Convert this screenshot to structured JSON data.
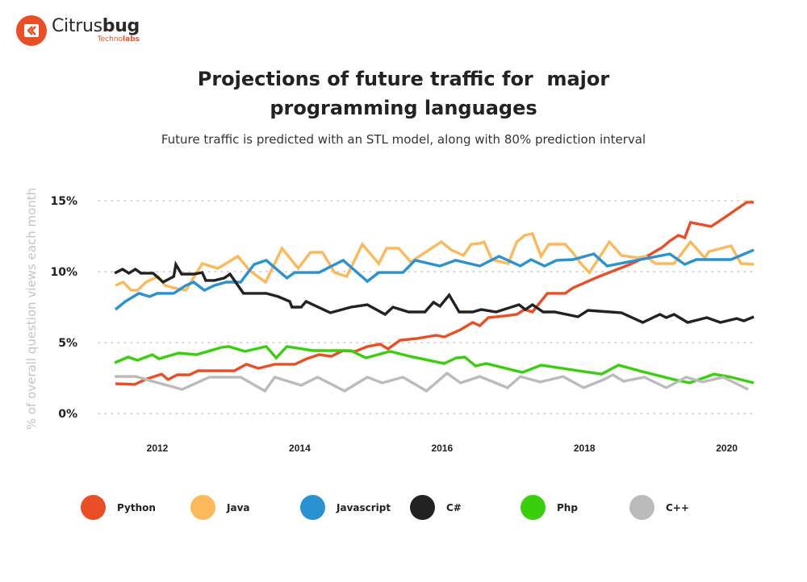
{
  "brand": {
    "name_regular": "Citrus",
    "name_bold": "bug",
    "sub_regular": "Techno",
    "sub_bold": "labs",
    "logo_icon": "chevron-left-double-icon",
    "color": "#ea4e27"
  },
  "title_line1": "Projections of future traffic for  major",
  "title_line2": "programming languages",
  "subtitle": "Future traffic is predicted with an STL model, along with 80% prediction interval",
  "chart_data": {
    "type": "line",
    "title": "Projections of future traffic for major programming languages",
    "subtitle": "Future traffic is predicted with an STL model, along with 80% prediction interval",
    "xlabel": "",
    "ylabel": "% of overall question views each month",
    "xlim": [
      2011.3,
      2020.5
    ],
    "ylim": [
      0,
      15
    ],
    "x_ticks": [
      2012,
      2014,
      2016,
      2018,
      2020
    ],
    "x_tick_labels": [
      "2012",
      "2014",
      "2016",
      "2018",
      "2020"
    ],
    "y_ticks": [
      0,
      5,
      10,
      15
    ],
    "y_tick_labels": [
      "0%",
      "5%",
      "10%",
      "15%"
    ],
    "grid": "horizontal dotted",
    "legend_position": "bottom",
    "series": [
      {
        "name": "Python",
        "color": "#ea4e27",
        "points": [
          [
            2011.41,
            2.1
          ],
          [
            2011.68,
            2.05
          ],
          [
            2011.85,
            2.44
          ],
          [
            2012.06,
            2.78
          ],
          [
            2012.15,
            2.39
          ],
          [
            2012.28,
            2.73
          ],
          [
            2012.45,
            2.73
          ],
          [
            2012.57,
            3.01
          ],
          [
            2012.74,
            3.01
          ],
          [
            2013.08,
            3.01
          ],
          [
            2013.25,
            3.47
          ],
          [
            2013.42,
            3.18
          ],
          [
            2013.65,
            3.47
          ],
          [
            2013.93,
            3.47
          ],
          [
            2014.1,
            3.86
          ],
          [
            2014.27,
            4.15
          ],
          [
            2014.44,
            4.03
          ],
          [
            2014.61,
            4.43
          ],
          [
            2014.78,
            4.38
          ],
          [
            2014.95,
            4.72
          ],
          [
            2015.13,
            4.89
          ],
          [
            2015.24,
            4.55
          ],
          [
            2015.41,
            5.17
          ],
          [
            2015.64,
            5.28
          ],
          [
            2015.92,
            5.51
          ],
          [
            2016.03,
            5.4
          ],
          [
            2016.26,
            5.91
          ],
          [
            2016.43,
            6.42
          ],
          [
            2016.53,
            6.19
          ],
          [
            2016.65,
            6.76
          ],
          [
            2016.88,
            6.88
          ],
          [
            2017.05,
            6.99
          ],
          [
            2017.16,
            7.33
          ],
          [
            2017.27,
            7.16
          ],
          [
            2017.48,
            8.47
          ],
          [
            2017.73,
            8.47
          ],
          [
            2017.84,
            8.86
          ],
          [
            2018.18,
            9.6
          ],
          [
            2018.41,
            10.06
          ],
          [
            2018.64,
            10.51
          ],
          [
            2018.86,
            11.02
          ],
          [
            2019.09,
            11.7
          ],
          [
            2019.2,
            12.16
          ],
          [
            2019.32,
            12.56
          ],
          [
            2019.41,
            12.39
          ],
          [
            2019.49,
            13.47
          ],
          [
            2019.78,
            13.18
          ],
          [
            2020.0,
            13.92
          ],
          [
            2020.28,
            14.89
          ],
          [
            2020.38,
            14.89
          ]
        ]
      },
      {
        "name": "Java",
        "color": "#fbb95b",
        "points": [
          [
            2011.41,
            9.03
          ],
          [
            2011.52,
            9.26
          ],
          [
            2011.63,
            8.69
          ],
          [
            2011.72,
            8.69
          ],
          [
            2011.84,
            9.26
          ],
          [
            2012.01,
            9.66
          ],
          [
            2012.11,
            9.03
          ],
          [
            2012.23,
            8.86
          ],
          [
            2012.4,
            8.69
          ],
          [
            2012.63,
            10.57
          ],
          [
            2012.85,
            10.23
          ],
          [
            2013.13,
            11.08
          ],
          [
            2013.3,
            10.06
          ],
          [
            2013.52,
            9.26
          ],
          [
            2013.75,
            11.65
          ],
          [
            2013.98,
            10.23
          ],
          [
            2014.15,
            11.36
          ],
          [
            2014.32,
            11.36
          ],
          [
            2014.49,
            9.94
          ],
          [
            2014.66,
            9.66
          ],
          [
            2014.88,
            11.93
          ],
          [
            2015.11,
            10.57
          ],
          [
            2015.22,
            11.65
          ],
          [
            2015.39,
            11.65
          ],
          [
            2015.56,
            10.68
          ],
          [
            2015.99,
            12.1
          ],
          [
            2016.13,
            11.53
          ],
          [
            2016.3,
            11.14
          ],
          [
            2016.41,
            11.93
          ],
          [
            2016.53,
            11.99
          ],
          [
            2016.59,
            12.1
          ],
          [
            2016.7,
            10.85
          ],
          [
            2016.93,
            10.57
          ],
          [
            2017.05,
            12.1
          ],
          [
            2017.16,
            12.56
          ],
          [
            2017.27,
            12.67
          ],
          [
            2017.39,
            11.08
          ],
          [
            2017.5,
            11.93
          ],
          [
            2017.73,
            11.93
          ],
          [
            2017.84,
            11.31
          ],
          [
            2017.95,
            10.57
          ],
          [
            2018.07,
            9.94
          ],
          [
            2018.35,
            12.1
          ],
          [
            2018.52,
            11.14
          ],
          [
            2018.75,
            10.97
          ],
          [
            2018.86,
            11.08
          ],
          [
            2019.0,
            10.57
          ],
          [
            2019.26,
            10.57
          ],
          [
            2019.49,
            12.1
          ],
          [
            2019.69,
            10.97
          ],
          [
            2019.75,
            11.42
          ],
          [
            2020.06,
            11.82
          ],
          [
            2020.2,
            10.57
          ],
          [
            2020.38,
            10.51
          ]
        ]
      },
      {
        "name": "Javascript",
        "color": "#2a92d0",
        "points": [
          [
            2011.41,
            7.33
          ],
          [
            2011.55,
            7.9
          ],
          [
            2011.74,
            8.47
          ],
          [
            2011.89,
            8.24
          ],
          [
            2012.0,
            8.47
          ],
          [
            2012.23,
            8.47
          ],
          [
            2012.4,
            9.03
          ],
          [
            2012.51,
            9.26
          ],
          [
            2012.66,
            8.69
          ],
          [
            2012.8,
            9.03
          ],
          [
            2012.97,
            9.26
          ],
          [
            2013.17,
            9.26
          ],
          [
            2013.36,
            10.51
          ],
          [
            2013.53,
            10.8
          ],
          [
            2013.82,
            9.55
          ],
          [
            2013.93,
            9.94
          ],
          [
            2014.27,
            9.94
          ],
          [
            2014.61,
            10.8
          ],
          [
            2014.95,
            9.32
          ],
          [
            2015.11,
            9.94
          ],
          [
            2015.45,
            9.94
          ],
          [
            2015.62,
            10.8
          ],
          [
            2015.97,
            10.4
          ],
          [
            2016.19,
            10.8
          ],
          [
            2016.53,
            10.4
          ],
          [
            2016.8,
            11.08
          ],
          [
            2017.1,
            10.4
          ],
          [
            2017.25,
            10.85
          ],
          [
            2017.44,
            10.4
          ],
          [
            2017.61,
            10.8
          ],
          [
            2017.84,
            10.85
          ],
          [
            2018.13,
            11.25
          ],
          [
            2018.32,
            10.4
          ],
          [
            2019.2,
            11.25
          ],
          [
            2019.41,
            10.51
          ],
          [
            2019.57,
            10.85
          ],
          [
            2020.06,
            10.85
          ],
          [
            2020.38,
            11.53
          ]
        ]
      },
      {
        "name": "C#",
        "color": "#222222",
        "points": [
          [
            2011.4,
            9.89
          ],
          [
            2011.51,
            10.17
          ],
          [
            2011.6,
            9.89
          ],
          [
            2011.69,
            10.17
          ],
          [
            2011.77,
            9.89
          ],
          [
            2011.94,
            9.89
          ],
          [
            2012.08,
            9.26
          ],
          [
            2012.23,
            9.66
          ],
          [
            2012.26,
            10.51
          ],
          [
            2012.34,
            9.83
          ],
          [
            2012.51,
            9.83
          ],
          [
            2012.63,
            9.94
          ],
          [
            2012.68,
            9.38
          ],
          [
            2012.8,
            9.38
          ],
          [
            2012.94,
            9.55
          ],
          [
            2013.02,
            9.83
          ],
          [
            2013.21,
            8.47
          ],
          [
            2013.53,
            8.47
          ],
          [
            2013.7,
            8.24
          ],
          [
            2013.86,
            7.9
          ],
          [
            2013.89,
            7.5
          ],
          [
            2014.02,
            7.5
          ],
          [
            2014.09,
            7.9
          ],
          [
            2014.43,
            7.1
          ],
          [
            2014.72,
            7.5
          ],
          [
            2014.95,
            7.67
          ],
          [
            2015.2,
            6.99
          ],
          [
            2015.31,
            7.5
          ],
          [
            2015.53,
            7.16
          ],
          [
            2015.76,
            7.16
          ],
          [
            2015.88,
            7.84
          ],
          [
            2015.97,
            7.56
          ],
          [
            2016.1,
            8.35
          ],
          [
            2016.24,
            7.16
          ],
          [
            2016.43,
            7.16
          ],
          [
            2016.55,
            7.33
          ],
          [
            2016.76,
            7.16
          ],
          [
            2017.08,
            7.67
          ],
          [
            2017.17,
            7.33
          ],
          [
            2017.27,
            7.67
          ],
          [
            2017.42,
            7.16
          ],
          [
            2017.58,
            7.16
          ],
          [
            2017.91,
            6.82
          ],
          [
            2018.05,
            7.27
          ],
          [
            2018.52,
            7.1
          ],
          [
            2018.82,
            6.42
          ],
          [
            2019.06,
            6.99
          ],
          [
            2019.15,
            6.76
          ],
          [
            2019.26,
            6.99
          ],
          [
            2019.45,
            6.42
          ],
          [
            2019.72,
            6.76
          ],
          [
            2019.91,
            6.42
          ],
          [
            2020.14,
            6.7
          ],
          [
            2020.24,
            6.53
          ],
          [
            2020.38,
            6.82
          ]
        ]
      },
      {
        "name": "Php",
        "color": "#3acf0d",
        "points": [
          [
            2011.4,
            3.58
          ],
          [
            2011.59,
            3.98
          ],
          [
            2011.72,
            3.75
          ],
          [
            2011.93,
            4.15
          ],
          [
            2012.02,
            3.86
          ],
          [
            2012.3,
            4.26
          ],
          [
            2012.55,
            4.15
          ],
          [
            2012.9,
            4.66
          ],
          [
            2013.0,
            4.72
          ],
          [
            2013.23,
            4.38
          ],
          [
            2013.53,
            4.72
          ],
          [
            2013.67,
            3.92
          ],
          [
            2013.82,
            4.72
          ],
          [
            2014.19,
            4.43
          ],
          [
            2014.44,
            4.43
          ],
          [
            2014.72,
            4.43
          ],
          [
            2014.93,
            3.92
          ],
          [
            2015.27,
            4.38
          ],
          [
            2015.55,
            4.03
          ],
          [
            2016.03,
            3.52
          ],
          [
            2016.2,
            3.92
          ],
          [
            2016.32,
            3.98
          ],
          [
            2016.47,
            3.35
          ],
          [
            2016.62,
            3.52
          ],
          [
            2016.94,
            3.13
          ],
          [
            2017.13,
            2.9
          ],
          [
            2017.39,
            3.41
          ],
          [
            2018.0,
            2.95
          ],
          [
            2018.24,
            2.78
          ],
          [
            2018.48,
            3.41
          ],
          [
            2018.82,
            2.95
          ],
          [
            2019.26,
            2.39
          ],
          [
            2019.48,
            2.16
          ],
          [
            2019.82,
            2.78
          ],
          [
            2020.06,
            2.56
          ],
          [
            2020.38,
            2.16
          ]
        ]
      },
      {
        "name": "C++",
        "color": "#bbbbbb",
        "points": [
          [
            2011.4,
            2.61
          ],
          [
            2011.7,
            2.61
          ],
          [
            2011.93,
            2.27
          ],
          [
            2012.35,
            1.7
          ],
          [
            2012.73,
            2.56
          ],
          [
            2013.17,
            2.56
          ],
          [
            2013.51,
            1.59
          ],
          [
            2013.65,
            2.56
          ],
          [
            2014.02,
            1.99
          ],
          [
            2014.25,
            2.56
          ],
          [
            2014.63,
            1.59
          ],
          [
            2014.95,
            2.56
          ],
          [
            2015.16,
            2.16
          ],
          [
            2015.45,
            2.56
          ],
          [
            2015.78,
            1.59
          ],
          [
            2016.07,
            2.84
          ],
          [
            2016.26,
            2.16
          ],
          [
            2016.53,
            2.61
          ],
          [
            2016.92,
            1.82
          ],
          [
            2017.1,
            2.61
          ],
          [
            2017.38,
            2.22
          ],
          [
            2017.7,
            2.61
          ],
          [
            2017.99,
            1.82
          ],
          [
            2018.27,
            2.39
          ],
          [
            2018.4,
            2.73
          ],
          [
            2018.55,
            2.27
          ],
          [
            2018.84,
            2.56
          ],
          [
            2019.15,
            1.82
          ],
          [
            2019.43,
            2.56
          ],
          [
            2019.66,
            2.22
          ],
          [
            2019.95,
            2.56
          ],
          [
            2020.3,
            1.7
          ]
        ]
      }
    ]
  }
}
